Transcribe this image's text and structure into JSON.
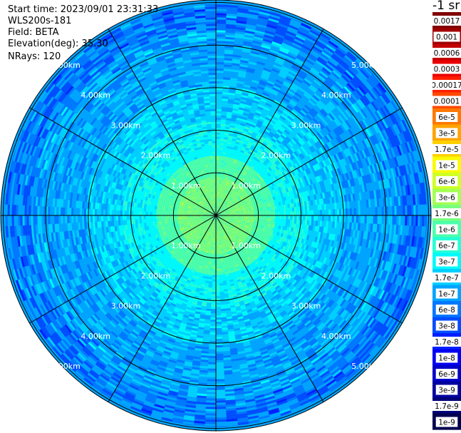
{
  "header": {
    "start_time": "Start time: 2023/09/01 23:31:33",
    "instrument": "WLS200s-181",
    "field": "Field: BETA",
    "elevation": "Elevation(deg): 35.30",
    "nrays": "NRays: 120"
  },
  "colorbar": {
    "title": "-1 sr",
    "levels": [
      {
        "label": "0.0017",
        "color": "#800000"
      },
      {
        "label": "0.001",
        "color": "#a00000"
      },
      {
        "label": "0.0006",
        "color": "#c40000"
      },
      {
        "label": "0.0003",
        "color": "#ea0000"
      },
      {
        "label": "0.00017",
        "color": "#ff1e00"
      },
      {
        "label": "0.0001",
        "color": "#ff4a00"
      },
      {
        "label": "6e-5",
        "color": "#ff7800"
      },
      {
        "label": "3e-5",
        "color": "#ffa400"
      },
      {
        "label": "1.7e-5",
        "color": "#ffd000"
      },
      {
        "label": "1e-5",
        "color": "#fafa00"
      },
      {
        "label": "6e-6",
        "color": "#d0ff26"
      },
      {
        "label": "3e-6",
        "color": "#a4ff52"
      },
      {
        "label": "1.7e-6",
        "color": "#78ff7e"
      },
      {
        "label": "1e-6",
        "color": "#4cffaa"
      },
      {
        "label": "6e-7",
        "color": "#26ffd4"
      },
      {
        "label": "3e-7",
        "color": "#00fafa"
      },
      {
        "label": "1.7e-7",
        "color": "#00d0ff"
      },
      {
        "label": "1e-7",
        "color": "#00a4ff"
      },
      {
        "label": "6e-8",
        "color": "#0078ff"
      },
      {
        "label": "3e-8",
        "color": "#004cff"
      },
      {
        "label": "1.7e-8",
        "color": "#0020ff"
      },
      {
        "label": "1e-8",
        "color": "#0000f2"
      },
      {
        "label": "6e-9",
        "color": "#0000c8"
      },
      {
        "label": "3e-9",
        "color": "#00009e"
      },
      {
        "label": "1.7e-9",
        "color": "#000078"
      },
      {
        "label": "1e-9",
        "color": "#000050"
      }
    ]
  },
  "chart_data": {
    "type": "heatmap",
    "projection": "polar (PPI)",
    "field": "BETA",
    "unit": "-1 sr",
    "elevation_deg": 35.3,
    "n_rays": 120,
    "spokes_every_deg": 30,
    "range_rings_km": [
      1,
      2,
      3,
      4,
      5
    ],
    "ring_labels": [
      "1.00km",
      "2.00km",
      "3.00km",
      "4.00km",
      "5.00km"
    ],
    "max_range_km": 5.0,
    "gate_step_km": 0.05,
    "value_by_range_km": [
      {
        "range_km": 0.0,
        "value": "1.7e-6"
      },
      {
        "range_km": 0.9,
        "value": "1e-6"
      },
      {
        "range_km": 1.4,
        "value": "3e-7"
      },
      {
        "range_km": 2.2,
        "value": "1.7e-7"
      },
      {
        "range_km": 3.0,
        "value": "1e-7"
      },
      {
        "range_km": 4.3,
        "value": "6e-8"
      },
      {
        "range_km": 5.0,
        "value": "3e-8"
      }
    ]
  }
}
